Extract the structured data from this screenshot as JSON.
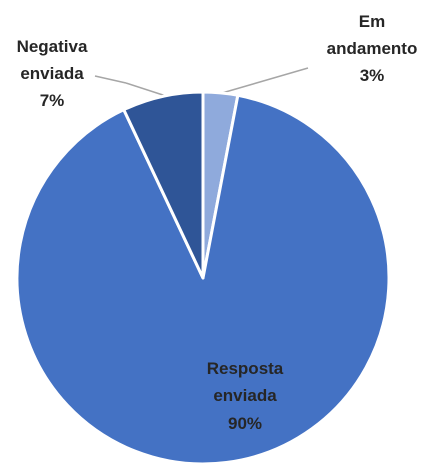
{
  "chart_data": {
    "type": "pie",
    "categories": [
      "Em andamento",
      "Resposta enviada",
      "Negativa enviada"
    ],
    "values": [
      3,
      90,
      7
    ],
    "value_labels": [
      "3%",
      "90%",
      "7%"
    ],
    "colors": [
      "#8faadc",
      "#4472c4",
      "#2f5597"
    ]
  }
}
